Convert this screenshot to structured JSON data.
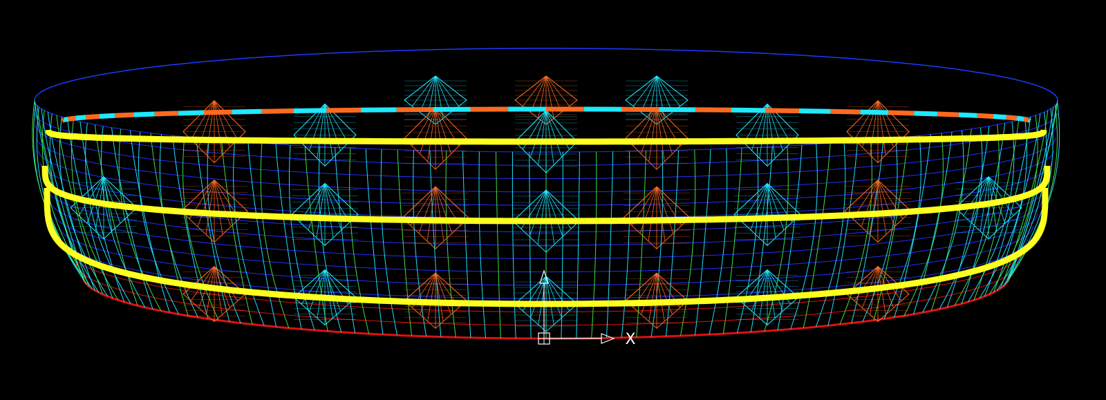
{
  "viewport": {
    "axis_label": "X"
  }
}
